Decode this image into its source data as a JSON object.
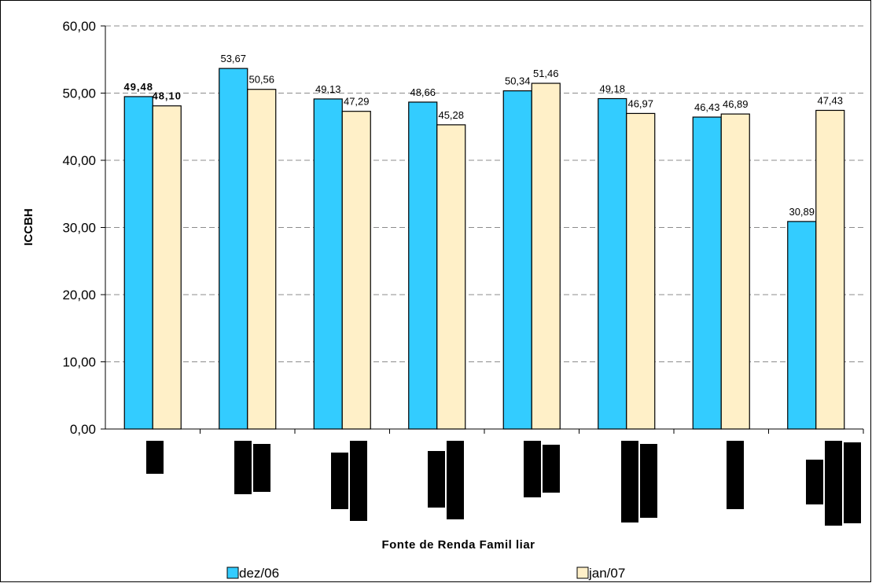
{
  "chart_data": {
    "type": "bar",
    "title": "",
    "xlabel": "Fonte de Renda Famil liar",
    "ylabel": "ICCBH",
    "ylim": [
      0,
      60
    ],
    "ytick_labels": [
      "0,00",
      "10,00",
      "20,00",
      "30,00",
      "40,00",
      "50,00",
      "60,00"
    ],
    "grid": true,
    "legend_position": "bottom",
    "categories": [
      "",
      "",
      "",
      "",
      "",
      "",
      "",
      ""
    ],
    "series": [
      {
        "name": "dez/06",
        "color": "#33CCFF",
        "values": [
          49.48,
          53.67,
          49.13,
          48.66,
          50.34,
          49.18,
          46.43,
          30.89
        ],
        "labels": [
          "49,48",
          "53,67",
          "49,13",
          "48,66",
          "50,34",
          "49,18",
          "46,43",
          "30,89"
        ]
      },
      {
        "name": "jan/07",
        "color": "#FFF0C8",
        "values": [
          48.1,
          50.56,
          47.29,
          45.28,
          51.46,
          46.97,
          46.89,
          47.43
        ],
        "labels": [
          "48,10",
          "50,56",
          "47,29",
          "45,28",
          "51,46",
          "46,97",
          "46,89",
          "47,43"
        ]
      }
    ],
    "bold_label_category_index": 0
  }
}
